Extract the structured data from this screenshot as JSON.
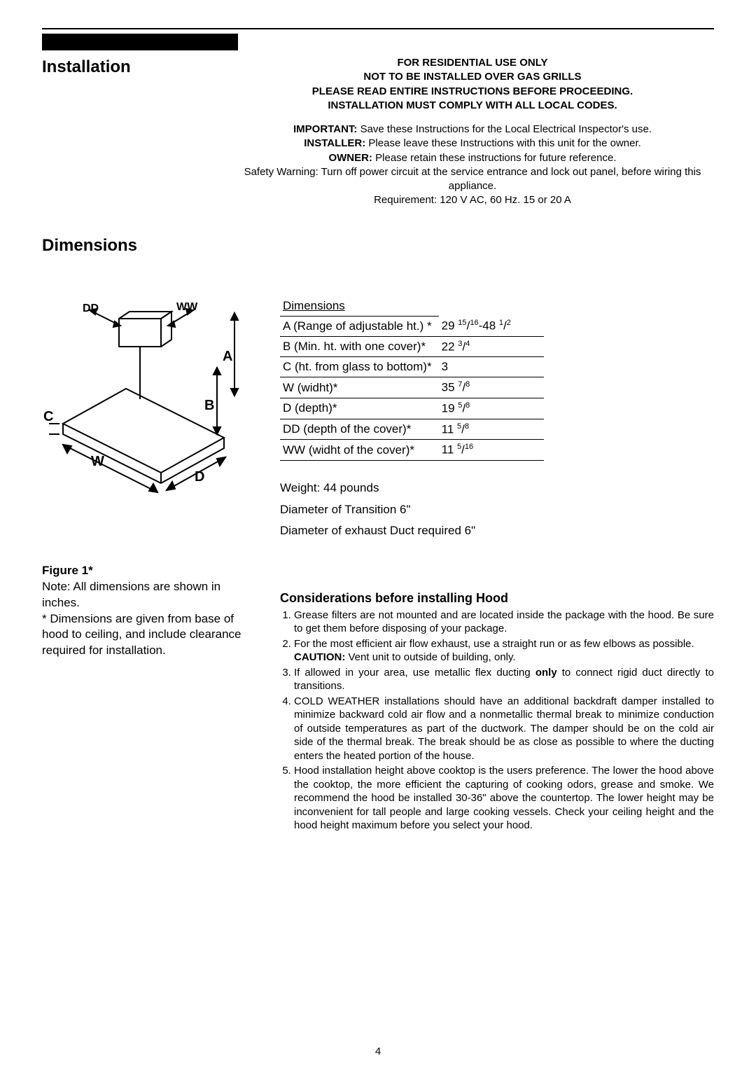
{
  "sections": {
    "installation_title": "Installation",
    "dimensions_title": "Dimensions"
  },
  "header": {
    "l1": "FOR RESIDENTIAL USE ONLY",
    "l2": "NOT TO BE INSTALLED OVER GAS GRILLS",
    "l3": "PLEASE READ ENTIRE INSTRUCTIONS BEFORE PROCEEDING.",
    "l4": "INSTALLATION MUST COMPLY WITH ALL LOCAL CODES.",
    "p1a": "IMPORTANT:",
    "p1b": " Save these Instructions for the Local Electrical Inspector's use.",
    "p2a": "INSTALLER:",
    "p2b": " Please leave these Instructions with this unit for the owner.",
    "p3a": "OWNER:",
    "p3b": " Please retain these instructions for future reference.",
    "p4": "Safety Warning: Turn off power circuit at the service entrance and lock out panel, before wiring this appliance.",
    "p5": "Requirement: 120 V AC, 60 Hz. 15 or 20 A"
  },
  "fig_labels": {
    "DD": "DD",
    "WW": "WW",
    "A": "A",
    "B": "B",
    "C": "C",
    "W": "W",
    "D": "D"
  },
  "dim_table": {
    "header": "Dimensions",
    "rows": [
      {
        "label": "A (Range of adjustable ht.)  *",
        "value_html": "29 <span class='sup'>15</span>/<span class='sup'>16</span>-48 <span class='sup'>1</span>/<span class='sup'>2</span>"
      },
      {
        "label": "B (Min. ht. with one cover)*",
        "value_html": "22 <span class='sup'>3</span>/<span class='sup'>4</span>"
      },
      {
        "label": "C (ht. from glass to bottom)*",
        "value_html": "3"
      },
      {
        "label": "W (widht)*",
        "value_html": "35 <span class='sup'>7</span>/<span class='sup'>8</span>"
      },
      {
        "label": "D (depth)*",
        "value_html": "19 <span class='sup'>5</span>/<span class='sup'>8</span>"
      },
      {
        "label": "DD (depth of the cover)*",
        "value_html": "11 <span class='sup'>5</span>/<span class='sup'>8</span>"
      },
      {
        "label": "WW (widht of the cover)*",
        "value_html": "11 <span class='sup'>5</span>/<span class='sup'>16</span>"
      }
    ]
  },
  "below_table": {
    "weight": "Weight: 44 pounds",
    "diam_trans": "Diameter of Transition  6\"",
    "diam_exh": "Diameter of exhaust Duct required  6\""
  },
  "figure_caption": {
    "title": "Figure 1*",
    "note": "Note: All dimensions are shown in inches.",
    "star": "* Dimensions are given from base of hood to ceiling, and include clearance required for installation."
  },
  "considerations": {
    "title": "Considerations before installing Hood",
    "items": [
      "Grease filters are not mounted and are located inside the package with the hood. Be sure to get them before disposing of your package.",
      "For the most efficient air flow exhaust, use a straight run or as few elbows as possible.<br><span class='caution'>CAUTION:</span>  Vent unit to outside of building, only.",
      "If allowed in your area, use metallic flex ducting <b>only</b> to connect rigid duct directly to  transitions.",
      "COLD WEATHER installations should have an additional backdraft damper installed to minimize backward cold air flow and a nonmetallic thermal break to minimize conduction of outside temperatures as part of the ductwork.  The damper should be on the cold air side of the thermal break.  The break should be as close as possible to where the ducting enters the heated portion of the house.",
      "Hood installation height above cooktop is the users preference.  The lower the hood above the cooktop, the more efficient the capturing of cooking odors, grease and smoke.  We recommend the hood be installed 30-36\" above the countertop.  The lower height may be inconvenient for tall people and large cooking vessels.  Check your ceiling height and the hood height maximum before you select your hood."
    ]
  },
  "page_number": "4",
  "colors": {
    "text": "#000000",
    "bg": "#ffffff"
  }
}
